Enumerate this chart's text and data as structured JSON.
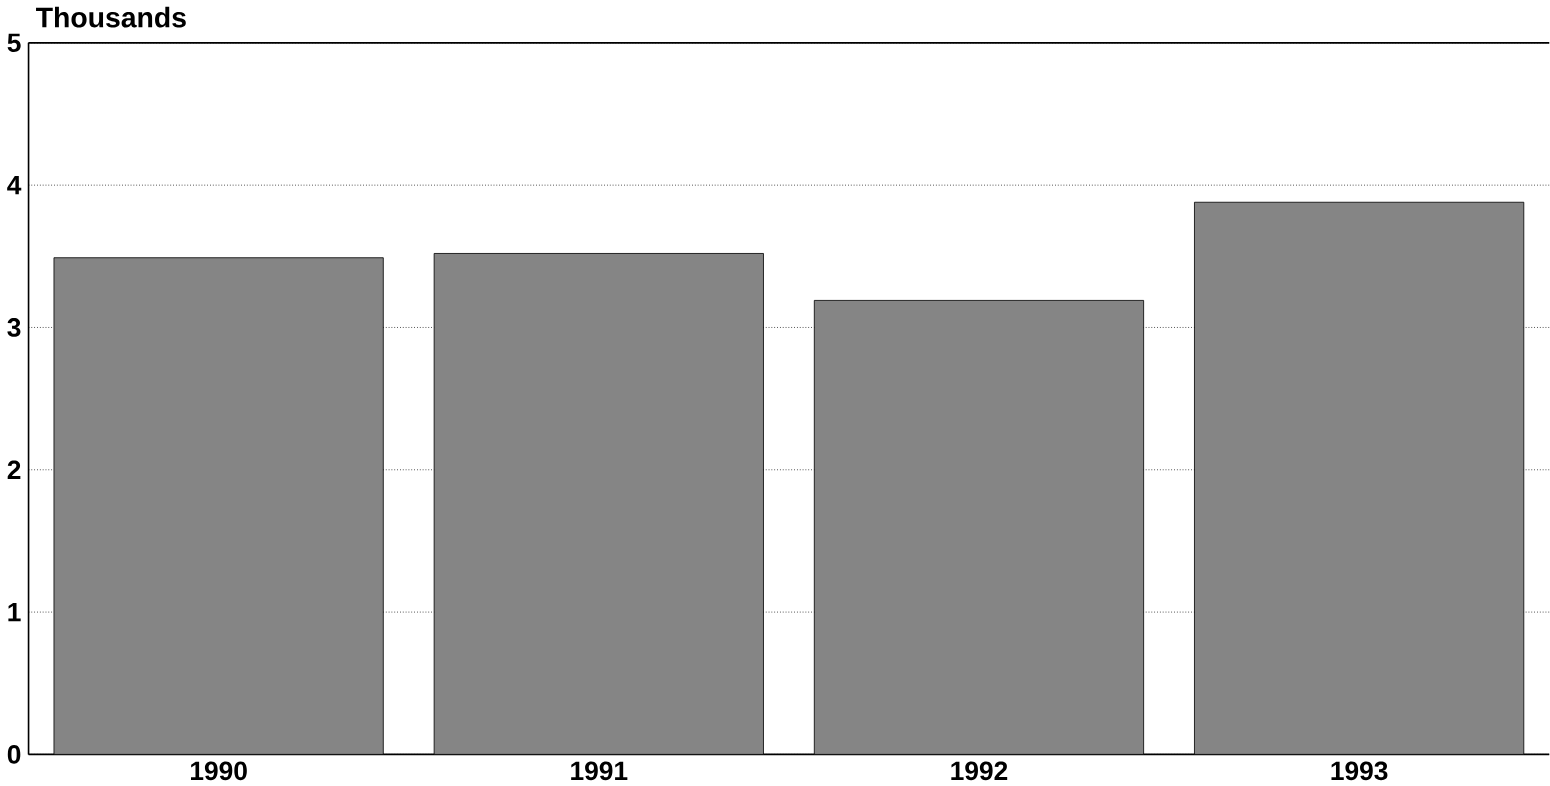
{
  "chart_data": {
    "type": "bar",
    "ylabel": "Thousands",
    "categories": [
      "1990",
      "1991",
      "1992",
      "1993"
    ],
    "values": [
      3.49,
      3.52,
      3.19,
      3.88
    ],
    "color": "#858585",
    "ylim": [
      0,
      5
    ],
    "yticks": [
      0,
      1,
      2,
      3,
      4,
      5
    ],
    "grid": "y"
  }
}
